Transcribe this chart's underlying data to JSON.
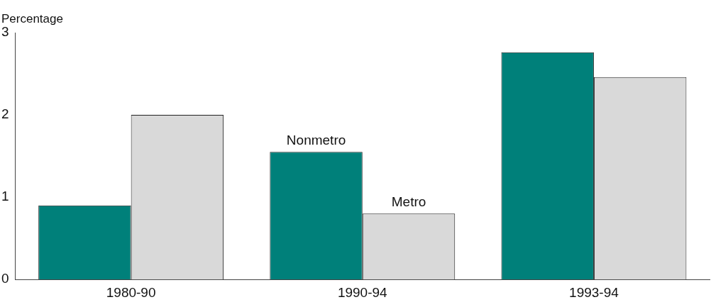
{
  "chart_data": {
    "type": "bar",
    "ylabel": "Percentage",
    "categories": [
      "1980-90",
      "1990-94",
      "1993-94"
    ],
    "series": [
      {
        "name": "Nonmetro",
        "color": "#00807a",
        "values": [
          0.9,
          1.55,
          2.76
        ]
      },
      {
        "name": "Metro",
        "color": "#d9d9d9",
        "values": [
          2.0,
          0.8,
          2.46
        ]
      }
    ],
    "ylim": [
      0,
      3
    ],
    "yticks": [
      0,
      1,
      2,
      3
    ],
    "grid": false,
    "legend": false
  }
}
